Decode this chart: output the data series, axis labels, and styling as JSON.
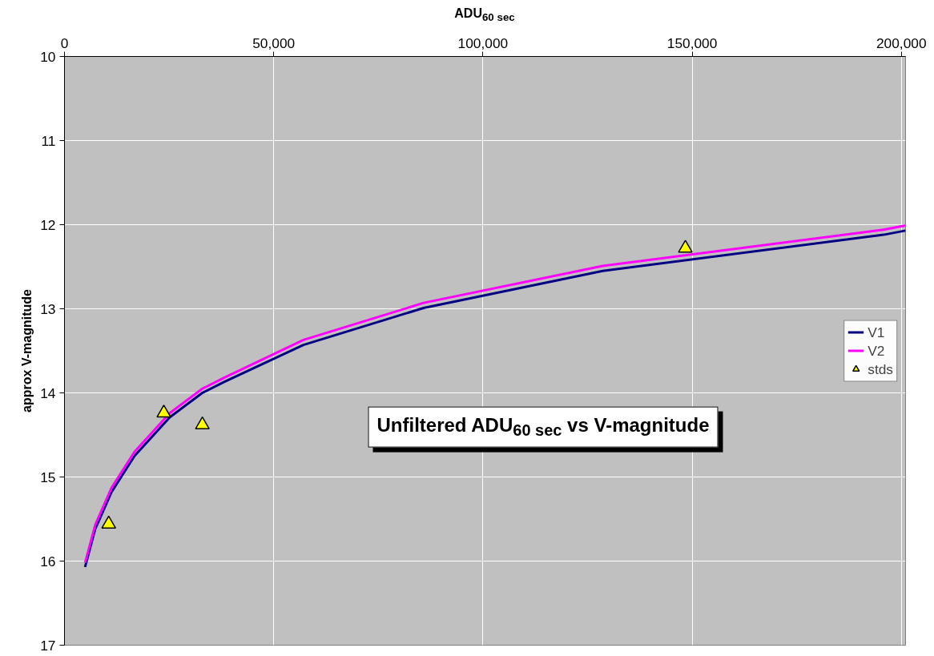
{
  "chart_data": {
    "type": "line",
    "title": "Unfiltered ADU$_{60 sec}$ vs V-magnitude",
    "xlabel": "ADU$_{60 sec}$",
    "ylabel": "approx V-magnitude",
    "xlim": [
      0,
      201000
    ],
    "ylim": [
      17,
      10
    ],
    "xticks": [
      0,
      {
        "value": 50000,
        "label": "50,000"
      },
      {
        "value": 100000,
        "label": "100,000"
      },
      {
        "value": 150000,
        "label": "150,000"
      },
      {
        "value": 200000,
        "label": "200,000"
      }
    ],
    "yticks": [
      10,
      11,
      12,
      13,
      14,
      15,
      16,
      17
    ],
    "grid": true,
    "legend": "right",
    "line_style": "solid",
    "marker": "none",
    "series": [
      {
        "name": "V1",
        "color": "#000080",
        "x": [
          4920,
          7340,
          11230,
          16740,
          25160,
          32950,
          38140,
          57110,
          85820,
          128630,
          195770,
          201000
        ],
        "values": [
          16.07,
          15.62,
          15.18,
          14.75,
          14.29,
          14.0,
          13.87,
          13.43,
          12.99,
          12.55,
          12.12,
          12.07
        ]
      },
      {
        "name": "V2",
        "color": "#ff00ff",
        "x": [
          4920,
          7340,
          11230,
          16740,
          25160,
          32950,
          38140,
          57110,
          85820,
          128630,
          195770,
          201000
        ],
        "values": [
          16.02,
          15.57,
          15.13,
          14.7,
          14.24,
          13.95,
          13.82,
          13.37,
          12.93,
          12.49,
          12.06,
          12.01
        ]
      },
      {
        "name": "stds",
        "type": "scatter",
        "marker": "triangle",
        "color": "#ffff00",
        "x": [
          10570,
          23740,
          32950,
          148380
        ],
        "values": [
          15.56,
          14.24,
          14.38,
          12.28
        ]
      }
    ]
  }
}
